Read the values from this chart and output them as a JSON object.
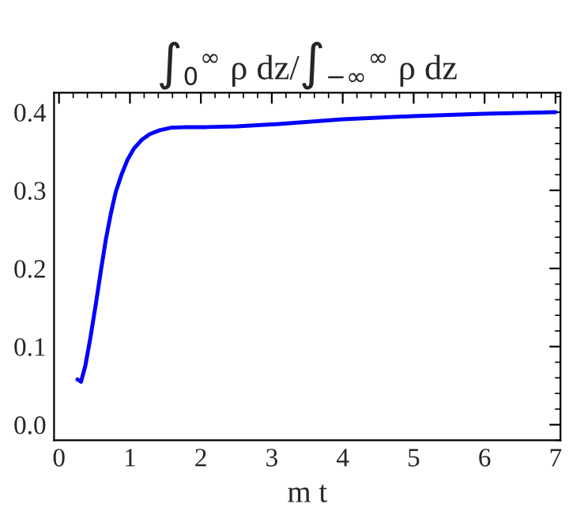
{
  "chart_data": {
    "type": "line",
    "title": "∫$_{0}$$^{∞}$ ρ dz/∫$_{−∞}$$^{∞}$ ρ dz",
    "xlabel": "m t",
    "series": [
      {
        "color": "#0000ff",
        "x": [
          0.26,
          0.31,
          0.37,
          0.44,
          0.52,
          0.59,
          0.66,
          0.73,
          0.8,
          0.88,
          0.97,
          1.06,
          1.17,
          1.28,
          1.42,
          1.57,
          1.8,
          2.08,
          2.5,
          3.1,
          4.0,
          5.0,
          6.0,
          7.0
        ],
        "values": [
          0.058,
          0.055,
          0.075,
          0.11,
          0.155,
          0.197,
          0.237,
          0.27,
          0.298,
          0.32,
          0.34,
          0.354,
          0.365,
          0.372,
          0.377,
          0.38,
          0.381,
          0.381,
          0.382,
          0.385,
          0.391,
          0.395,
          0.398,
          0.4
        ]
      }
    ],
    "xlim": [
      -0.07,
      7.07
    ],
    "ylim": [
      -0.02,
      0.425
    ],
    "xticks": [
      0,
      1,
      2,
      3,
      4,
      5,
      6,
      7
    ],
    "yticks": [
      {
        "value": 0,
        "label": "0.0"
      },
      0.1,
      0.2,
      0.3,
      0.4
    ],
    "line_style": "solid",
    "marker": "none"
  }
}
